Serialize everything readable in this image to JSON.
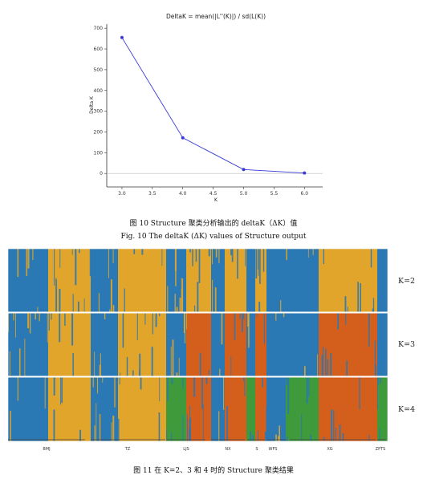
{
  "chart_data": {
    "type": "line",
    "title": "DeltaK = mean(|L''(K)|) / sd(L(K))",
    "xlabel": "K",
    "ylabel": "Delta K",
    "x": [
      3.0,
      4.0,
      5.0,
      6.0
    ],
    "y": [
      655,
      172,
      19,
      2
    ],
    "xlim": [
      2.75,
      6.3
    ],
    "ylim": [
      -65,
      720
    ],
    "xticks": [
      "3.0",
      "3.5",
      "4.0",
      "4.5",
      "5.0",
      "5.5",
      "6.0"
    ],
    "yticks": [
      "0",
      "100",
      "200",
      "300",
      "400",
      "500",
      "600",
      "700"
    ],
    "grid": false,
    "line_color": "#3a3ad6"
  },
  "caption_fig10_cn": "图 10 Structure 聚类分析输出的 deltaK（ΔK）值",
  "caption_fig10_en": "Fig. 10 The deltaK (ΔK) values of Structure output",
  "caption_fig11_cn": "图 11 在 K=2、3 和 4 时的 Structure 聚类结果",
  "k_labels": [
    "K=2",
    "K=3",
    "K=4"
  ],
  "populations": [
    "BMJ",
    "TZ",
    "LJS",
    "NX",
    "S",
    "WFS",
    "XG",
    "ZPTS"
  ],
  "cluster_colors": {
    "blue": "#2a78b4",
    "yellow": "#e0a52a",
    "orange": "#d45f1c",
    "green": "#3e9a3a"
  }
}
